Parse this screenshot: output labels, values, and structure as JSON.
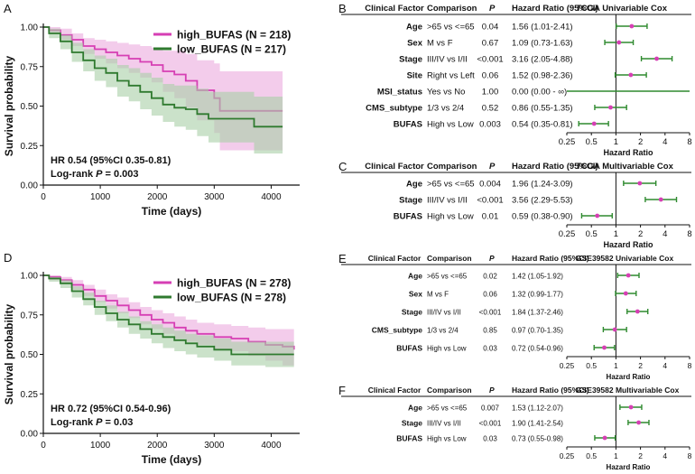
{
  "colors": {
    "high": "#d63fb4",
    "high_fill": "#e9a3da",
    "low": "#2f7a2f",
    "low_fill": "#a9cfa6",
    "point": "#d63fb4",
    "ci": "#2f8a2f"
  },
  "chart_data": [
    {
      "id": "A",
      "type": "line",
      "panel_label": "A",
      "xlabel": "Time (days)",
      "ylabel": "Survival probability",
      "xlim": [
        0,
        4500
      ],
      "ylim": [
        0,
        1.0
      ],
      "xticks": [
        0,
        1000,
        2000,
        3000,
        4000
      ],
      "yticks": [
        0.0,
        0.25,
        0.5,
        0.75,
        1.0
      ],
      "ytick_labels": [
        "0.00",
        "0.25",
        "0.50",
        "0.75",
        "1.00"
      ],
      "legend_position": "top-right",
      "annotation_line1": "HR 0.54 (95%CI 0.35-0.81)",
      "annotation_line2_prefix": "Log-rank ",
      "annotation_p": "P",
      "annotation_line2_suffix": " = 0.003",
      "series": [
        {
          "name": "high_BUFAS (N = 218)",
          "x": [
            0,
            100,
            300,
            500,
            700,
            900,
            1100,
            1300,
            1500,
            1700,
            1900,
            2100,
            2300,
            2500,
            2700,
            3000,
            3100,
            4200
          ],
          "y": [
            1.0,
            0.98,
            0.95,
            0.92,
            0.88,
            0.86,
            0.84,
            0.82,
            0.8,
            0.78,
            0.76,
            0.72,
            0.7,
            0.66,
            0.6,
            0.55,
            0.47,
            0.47
          ],
          "ci_lower": [
            1.0,
            0.96,
            0.92,
            0.88,
            0.83,
            0.8,
            0.77,
            0.74,
            0.71,
            0.68,
            0.65,
            0.59,
            0.55,
            0.49,
            0.41,
            0.33,
            0.22,
            0.22
          ],
          "ci_upper": [
            1.0,
            1.0,
            0.99,
            0.96,
            0.93,
            0.92,
            0.91,
            0.9,
            0.89,
            0.88,
            0.87,
            0.85,
            0.85,
            0.83,
            0.79,
            0.77,
            0.72,
            0.72
          ]
        },
        {
          "name": "low_BUFAS (N = 217)",
          "x": [
            0,
            100,
            300,
            500,
            700,
            900,
            1100,
            1300,
            1500,
            1700,
            1900,
            2100,
            2300,
            2500,
            2700,
            2900,
            3700,
            4200
          ],
          "y": [
            1.0,
            0.96,
            0.91,
            0.84,
            0.79,
            0.74,
            0.71,
            0.66,
            0.63,
            0.59,
            0.55,
            0.51,
            0.49,
            0.48,
            0.45,
            0.42,
            0.37,
            0.37
          ],
          "ci_lower": [
            1.0,
            0.93,
            0.86,
            0.78,
            0.72,
            0.66,
            0.62,
            0.56,
            0.53,
            0.48,
            0.44,
            0.4,
            0.37,
            0.35,
            0.31,
            0.27,
            0.2,
            0.2
          ],
          "ci_upper": [
            1.0,
            0.99,
            0.95,
            0.9,
            0.86,
            0.82,
            0.8,
            0.76,
            0.74,
            0.71,
            0.68,
            0.64,
            0.63,
            0.63,
            0.61,
            0.59,
            0.56,
            0.56
          ]
        }
      ]
    },
    {
      "id": "D",
      "type": "line",
      "panel_label": "D",
      "xlabel": "Time (days)",
      "ylabel": "Survival probability",
      "xlim": [
        0,
        4500
      ],
      "ylim": [
        0,
        1.0
      ],
      "xticks": [
        0,
        1000,
        2000,
        3000,
        4000
      ],
      "yticks": [
        0.0,
        0.25,
        0.5,
        0.75,
        1.0
      ],
      "ytick_labels": [
        "0.00",
        "0.25",
        "0.50",
        "0.75",
        "1.00"
      ],
      "legend_position": "top-right",
      "annotation_line1": "HR 0.72 (95%CI 0.54-0.96)",
      "annotation_line2_prefix": "Log-rank ",
      "annotation_p": "P",
      "annotation_line2_suffix": " = 0.03",
      "series": [
        {
          "name": "high_BUFAS (N = 278)",
          "x": [
            0,
            100,
            300,
            500,
            700,
            900,
            1100,
            1300,
            1500,
            1700,
            1900,
            2100,
            2300,
            2500,
            2700,
            3000,
            3300,
            3600,
            3900,
            4200,
            4400
          ],
          "y": [
            1.0,
            0.99,
            0.97,
            0.94,
            0.91,
            0.87,
            0.84,
            0.81,
            0.78,
            0.75,
            0.72,
            0.7,
            0.67,
            0.65,
            0.63,
            0.61,
            0.6,
            0.58,
            0.56,
            0.55,
            0.53
          ],
          "ci_lower": [
            1.0,
            0.97,
            0.95,
            0.91,
            0.87,
            0.83,
            0.79,
            0.76,
            0.73,
            0.69,
            0.66,
            0.63,
            0.6,
            0.58,
            0.56,
            0.53,
            0.52,
            0.49,
            0.46,
            0.43,
            0.38
          ],
          "ci_upper": [
            1.0,
            1.0,
            0.99,
            0.97,
            0.94,
            0.91,
            0.88,
            0.86,
            0.83,
            0.8,
            0.78,
            0.76,
            0.74,
            0.72,
            0.7,
            0.69,
            0.68,
            0.67,
            0.66,
            0.66,
            0.66
          ]
        },
        {
          "name": "low_BUFAS (N = 278)",
          "x": [
            0,
            100,
            300,
            500,
            700,
            900,
            1100,
            1300,
            1500,
            1700,
            1900,
            2100,
            2300,
            2500,
            2700,
            3000,
            3300,
            3600,
            3900,
            4200,
            4400
          ],
          "y": [
            1.0,
            0.98,
            0.95,
            0.9,
            0.85,
            0.8,
            0.76,
            0.72,
            0.69,
            0.66,
            0.63,
            0.61,
            0.59,
            0.57,
            0.55,
            0.53,
            0.5,
            0.5,
            0.5,
            0.5,
            0.5
          ],
          "ci_lower": [
            1.0,
            0.96,
            0.92,
            0.86,
            0.81,
            0.75,
            0.71,
            0.67,
            0.63,
            0.6,
            0.57,
            0.54,
            0.52,
            0.5,
            0.48,
            0.46,
            0.43,
            0.43,
            0.42,
            0.42,
            0.42
          ],
          "ci_upper": [
            1.0,
            0.99,
            0.97,
            0.93,
            0.89,
            0.84,
            0.81,
            0.77,
            0.74,
            0.71,
            0.69,
            0.67,
            0.65,
            0.63,
            0.62,
            0.6,
            0.58,
            0.58,
            0.58,
            0.58,
            0.58
          ]
        }
      ]
    },
    {
      "id": "B",
      "type": "forest",
      "panel_label": "B",
      "title": "TCGA Univariable Cox",
      "headers": {
        "factor": "Clinical Factor",
        "comparison": "Comparison",
        "p": "P",
        "hr": "Hazard Ratio (95%CI)"
      },
      "xlabel": "Hazard Ratio",
      "xscale": "log2",
      "xlim": [
        0.25,
        8
      ],
      "xticks": [
        0.25,
        0.5,
        1,
        2,
        4,
        8
      ],
      "xtick_labels": [
        "0.25",
        "0.5",
        "1",
        "2",
        "4",
        "8"
      ],
      "rows": [
        {
          "factor": "Age",
          "comparison": ">65 vs <=65",
          "p": "0.04",
          "hr_text": "1.56 (1.01-2.41)",
          "hr": 1.56,
          "lo": 1.01,
          "hi": 2.41
        },
        {
          "factor": "Sex",
          "comparison": "M vs F",
          "p": "0.67",
          "hr_text": "1.09 (0.73-1.63)",
          "hr": 1.09,
          "lo": 0.73,
          "hi": 1.63
        },
        {
          "factor": "Stage",
          "comparison": "III/IV vs I/II",
          "p": "<0.001",
          "hr_text": "3.16 (2.05-4.88)",
          "hr": 3.16,
          "lo": 2.05,
          "hi": 4.88
        },
        {
          "factor": "Site",
          "comparison": "Right vs Left",
          "p": "0.06",
          "hr_text": "1.52 (0.98-2.36)",
          "hr": 1.52,
          "lo": 0.98,
          "hi": 2.36
        },
        {
          "factor": "MSI_status",
          "comparison": "Yes vs No",
          "p": "1.00",
          "hr_text": "0.00 (0.00 - ∞)",
          "hr": null,
          "lo": 0.25,
          "hi": 8,
          "full_line": true
        },
        {
          "factor": "CMS_subtype",
          "comparison": "1/3 vs 2/4",
          "p": "0.52",
          "hr_text": "0.86 (0.55-1.35)",
          "hr": 0.86,
          "lo": 0.55,
          "hi": 1.35
        },
        {
          "factor": "BUFAS",
          "comparison": "High vs Low",
          "p": "0.003",
          "hr_text": "0.54 (0.35-0.81)",
          "hr": 0.54,
          "lo": 0.35,
          "hi": 0.81
        }
      ]
    },
    {
      "id": "C",
      "type": "forest",
      "panel_label": "C",
      "title": "TCGA Multivariable Cox",
      "headers": {
        "factor": "Clinical Factor",
        "comparison": "Comparison",
        "p": "P",
        "hr": "Hazard Ratio (95%CI)"
      },
      "xlabel": "Hazard Ratio",
      "xscale": "log2",
      "xlim": [
        0.25,
        8
      ],
      "xticks": [
        0.25,
        0.5,
        1,
        2,
        4,
        8
      ],
      "xtick_labels": [
        "0.25",
        "0.5",
        "1",
        "2",
        "4",
        "8"
      ],
      "rows": [
        {
          "factor": "Age",
          "comparison": ">65 vs <=65",
          "p": "0.004",
          "hr_text": "1.96 (1.24-3.09)",
          "hr": 1.96,
          "lo": 1.24,
          "hi": 3.09
        },
        {
          "factor": "Stage",
          "comparison": "III/IV vs I/II",
          "p": "<0.001",
          "hr_text": "3.56 (2.29-5.53)",
          "hr": 3.56,
          "lo": 2.29,
          "hi": 5.53
        },
        {
          "factor": "BUFAS",
          "comparison": "High vs Low",
          "p": "0.01",
          "hr_text": "0.59 (0.38-0.90)",
          "hr": 0.59,
          "lo": 0.38,
          "hi": 0.9
        }
      ]
    },
    {
      "id": "E",
      "type": "forest",
      "panel_label": "E",
      "title": "GSE39582 Univariable Cox",
      "headers": {
        "factor": "Clinical Factor",
        "comparison": "Comparison",
        "p": "P",
        "hr": "Hazard Ratio (95%CI)"
      },
      "xlabel": "Hazard Ratio",
      "xscale": "log2",
      "xlim": [
        0.25,
        8
      ],
      "xticks": [
        0.25,
        0.5,
        1,
        2,
        4,
        8
      ],
      "xtick_labels": [
        "0.25",
        "0.5",
        "1",
        "2",
        "4",
        "8"
      ],
      "rows": [
        {
          "factor": "Age",
          "comparison": ">65 vs <=65",
          "p": "0.02",
          "hr_text": "1.42 (1.05-1.92)",
          "hr": 1.42,
          "lo": 1.05,
          "hi": 1.92
        },
        {
          "factor": "Sex",
          "comparison": "M vs F",
          "p": "0.06",
          "hr_text": "1.32 (0.99-1.77)",
          "hr": 1.32,
          "lo": 0.99,
          "hi": 1.77
        },
        {
          "factor": "Stage",
          "comparison": "III/IV vs I/II",
          "p": "<0.001",
          "hr_text": "1.84 (1.37-2.46)",
          "hr": 1.84,
          "lo": 1.37,
          "hi": 2.46
        },
        {
          "factor": "CMS_subtype",
          "comparison": "1/3 vs 2/4",
          "p": "0.85",
          "hr_text": "0.97 (0.70-1.35)",
          "hr": 0.97,
          "lo": 0.7,
          "hi": 1.35
        },
        {
          "factor": "BUFAS",
          "comparison": "High vs Low",
          "p": "0.03",
          "hr_text": "0.72 (0.54-0.96)",
          "hr": 0.72,
          "lo": 0.54,
          "hi": 0.96
        }
      ]
    },
    {
      "id": "F",
      "type": "forest",
      "panel_label": "F",
      "title": "GSE39582 Multivariable Cox",
      "headers": {
        "factor": "Clinical Factor",
        "comparison": "Comparison",
        "p": "P",
        "hr": "Hazard Ratio (95%CI)"
      },
      "xlabel": "Hazard Ratio",
      "xscale": "log2",
      "xlim": [
        0.25,
        8
      ],
      "xticks": [
        0.25,
        0.5,
        1,
        2,
        4,
        8
      ],
      "xtick_labels": [
        "0.25",
        "0.5",
        "1",
        "2",
        "4",
        "8"
      ],
      "rows": [
        {
          "factor": "Age",
          "comparison": ">65 vs <=65",
          "p": "0.007",
          "hr_text": "1.53 (1.12-2.07)",
          "hr": 1.53,
          "lo": 1.12,
          "hi": 2.07
        },
        {
          "factor": "Stage",
          "comparison": "III/IV vs I/II",
          "p": "<0.001",
          "hr_text": "1.90 (1.41-2.54)",
          "hr": 1.9,
          "lo": 1.41,
          "hi": 2.54
        },
        {
          "factor": "BUFAS",
          "comparison": "High vs Low",
          "p": "0.03",
          "hr_text": "0.73 (0.55-0.98)",
          "hr": 0.73,
          "lo": 0.55,
          "hi": 0.98
        }
      ]
    }
  ]
}
